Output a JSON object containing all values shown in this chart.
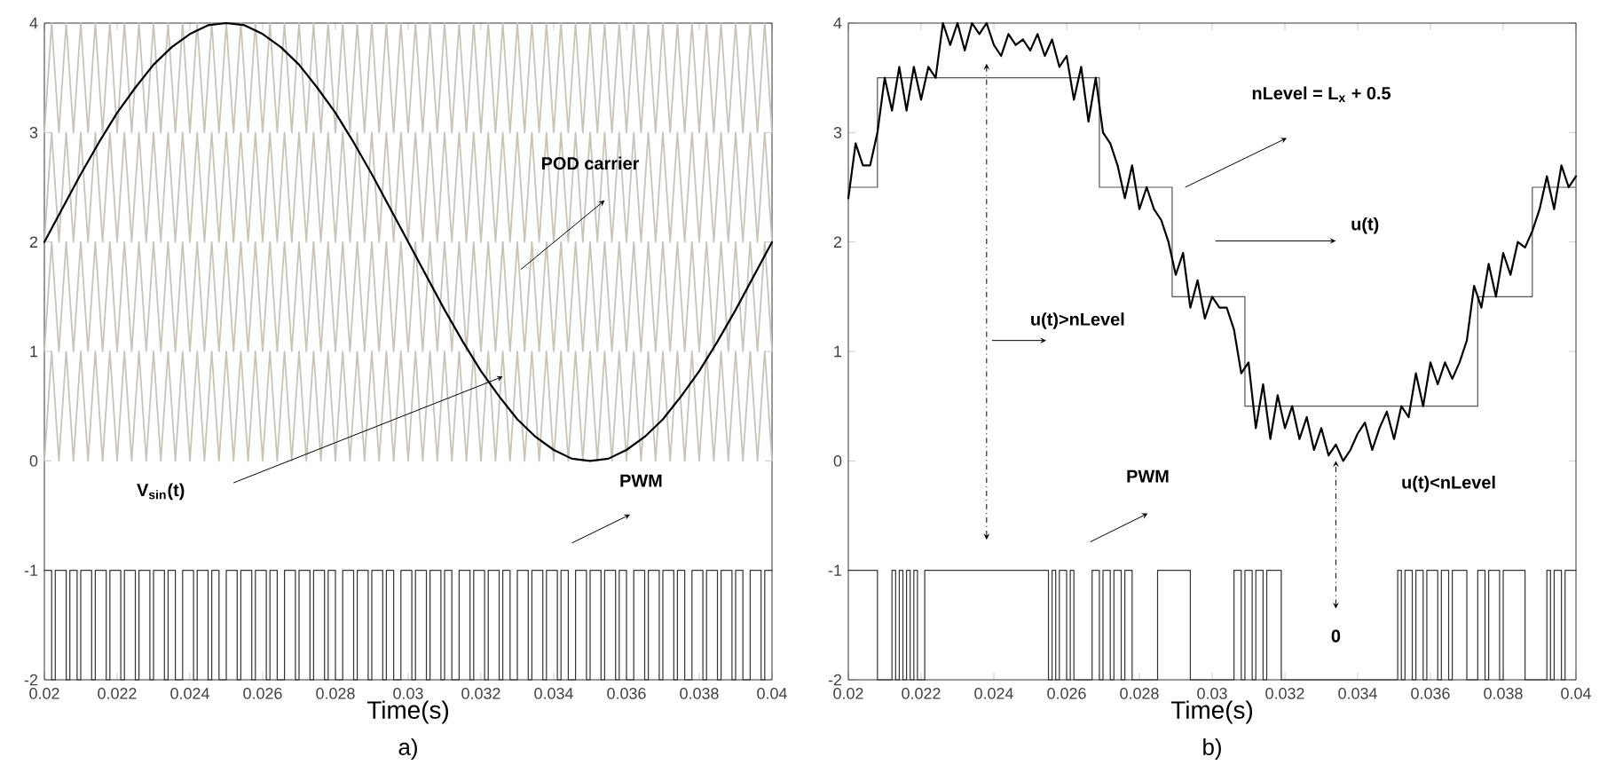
{
  "chart_data": [
    {
      "type": "line",
      "xlabel": "Time(s)",
      "xlim": [
        0.02,
        0.04
      ],
      "ylim": [
        -2,
        4
      ],
      "xticks": [
        0.02,
        0.022,
        0.024,
        0.026,
        0.028,
        0.03,
        0.032,
        0.034,
        0.036,
        0.038,
        0.04
      ],
      "yticks": [
        -2,
        -1,
        0,
        1,
        2,
        3,
        4
      ],
      "x": [
        0.02,
        0.0202,
        0.0204,
        0.0206,
        0.0208,
        0.021,
        0.0212,
        0.0214,
        0.0216,
        0.0218,
        0.022,
        0.0222,
        0.0224,
        0.0226,
        0.0228,
        0.023,
        0.0232,
        0.0234,
        0.0236,
        0.0238,
        0.024,
        0.0242,
        0.0244,
        0.0246,
        0.0248,
        0.025,
        0.0252,
        0.0254,
        0.0256,
        0.0258,
        0.026,
        0.0262,
        0.0264,
        0.0266,
        0.0268,
        0.027,
        0.0272,
        0.0274,
        0.0276,
        0.0278,
        0.028,
        0.0282,
        0.0284,
        0.0286,
        0.0288,
        0.029,
        0.0292,
        0.0294,
        0.0296,
        0.0298,
        0.03,
        0.0302,
        0.0304,
        0.0306,
        0.0308,
        0.031,
        0.0312,
        0.0314,
        0.0316,
        0.0318,
        0.032,
        0.0322,
        0.0324,
        0.0326,
        0.0328,
        0.033,
        0.0332,
        0.0334,
        0.0336,
        0.0338,
        0.034,
        0.0342,
        0.0344,
        0.0346,
        0.0348,
        0.035,
        0.0352,
        0.0354,
        0.0356,
        0.0358,
        0.036,
        0.0362,
        0.0364,
        0.0366,
        0.0368,
        0.037,
        0.0372,
        0.0374,
        0.0376,
        0.0378,
        0.038,
        0.0382,
        0.0384,
        0.0386,
        0.0388,
        0.039,
        0.0392,
        0.0394,
        0.0396,
        0.0398,
        0.04
      ],
      "series": [
        {
          "color": "#c8c3bd",
          "values": [
            0,
            1,
            0,
            1,
            0,
            1,
            0,
            1,
            0,
            1,
            0,
            1,
            0,
            1,
            0,
            1,
            0,
            1,
            0,
            1,
            0,
            1,
            0,
            1,
            0,
            1,
            0,
            1,
            0,
            1,
            0,
            1,
            0,
            1,
            0,
            1,
            0,
            1,
            0,
            1,
            0,
            1,
            0,
            1,
            0,
            1,
            0,
            1,
            0,
            1,
            0,
            1,
            0,
            1,
            0,
            1,
            0,
            1,
            0,
            1,
            0,
            1,
            0,
            1,
            0,
            1,
            0,
            1,
            0,
            1,
            0,
            1,
            0,
            1,
            0,
            1,
            0,
            1,
            0,
            1,
            0,
            1,
            0,
            1,
            0,
            1,
            0,
            1,
            0,
            1,
            0,
            1,
            0,
            1,
            0,
            1,
            0,
            1,
            0,
            1,
            0
          ]
        },
        {
          "color": "#c8c3bd",
          "values": [
            1,
            2,
            1,
            2,
            1,
            2,
            1,
            2,
            1,
            2,
            1,
            2,
            1,
            2,
            1,
            2,
            1,
            2,
            1,
            2,
            1,
            2,
            1,
            2,
            1,
            2,
            1,
            2,
            1,
            2,
            1,
            2,
            1,
            2,
            1,
            2,
            1,
            2,
            1,
            2,
            1,
            2,
            1,
            2,
            1,
            2,
            1,
            2,
            1,
            2,
            1,
            2,
            1,
            2,
            1,
            2,
            1,
            2,
            1,
            2,
            1,
            2,
            1,
            2,
            1,
            2,
            1,
            2,
            1,
            2,
            1,
            2,
            1,
            2,
            1,
            2,
            1,
            2,
            1,
            2,
            1,
            2,
            1,
            2,
            1,
            2,
            1,
            2,
            1,
            2,
            1,
            2,
            1,
            2,
            1,
            2,
            1,
            2,
            1,
            2,
            1
          ]
        },
        {
          "color": "#c8c3bd",
          "values": [
            2,
            3,
            2,
            3,
            2,
            3,
            2,
            3,
            2,
            3,
            2,
            3,
            2,
            3,
            2,
            3,
            2,
            3,
            2,
            3,
            2,
            3,
            2,
            3,
            2,
            3,
            2,
            3,
            2,
            3,
            2,
            3,
            2,
            3,
            2,
            3,
            2,
            3,
            2,
            3,
            2,
            3,
            2,
            3,
            2,
            3,
            2,
            3,
            2,
            3,
            2,
            3,
            2,
            3,
            2,
            3,
            2,
            3,
            2,
            3,
            2,
            3,
            2,
            3,
            2,
            3,
            2,
            3,
            2,
            3,
            2,
            3,
            2,
            3,
            2,
            3,
            2,
            3,
            2,
            3,
            2,
            3,
            2,
            3,
            2,
            3,
            2,
            3,
            2,
            3,
            2,
            3,
            2,
            3,
            2,
            3,
            2,
            3,
            2,
            3,
            2
          ]
        },
        {
          "color": "#c8c3bd",
          "values": [
            3,
            4,
            3,
            4,
            3,
            4,
            3,
            4,
            3,
            4,
            3,
            4,
            3,
            4,
            3,
            4,
            3,
            4,
            3,
            4,
            3,
            4,
            3,
            4,
            3,
            4,
            3,
            4,
            3,
            4,
            3,
            4,
            3,
            4,
            3,
            4,
            3,
            4,
            3,
            4,
            3,
            4,
            3,
            4,
            3,
            4,
            3,
            4,
            3,
            4,
            3,
            4,
            3,
            4,
            3,
            4,
            3,
            4,
            3,
            4,
            3,
            4,
            3,
            4,
            3,
            4,
            3,
            4,
            3,
            4,
            3,
            4,
            3,
            4,
            3,
            4,
            3,
            4,
            3,
            4,
            3,
            4,
            3,
            4,
            3,
            4,
            3,
            4,
            3,
            4,
            3,
            4,
            3,
            4,
            3,
            4,
            3,
            4,
            3,
            4,
            3
          ]
        },
        {
          "color": "#000000",
          "x": [
            0.02,
            0.0205,
            0.021,
            0.0215,
            0.022,
            0.0225,
            0.023,
            0.0235,
            0.024,
            0.0245,
            0.025,
            0.0255,
            0.026,
            0.0265,
            0.027,
            0.0275,
            0.028,
            0.0285,
            0.029,
            0.0295,
            0.03,
            0.0305,
            0.031,
            0.0315,
            0.032,
            0.0325,
            0.033,
            0.0335,
            0.034,
            0.0345,
            0.035,
            0.0355,
            0.036,
            0.0365,
            0.037,
            0.0375,
            0.038,
            0.0385,
            0.039,
            0.0395,
            0.04
          ],
          "values": [
            2,
            2.31,
            2.62,
            2.91,
            3.18,
            3.41,
            3.62,
            3.78,
            3.9,
            3.98,
            4,
            3.98,
            3.9,
            3.78,
            3.62,
            3.41,
            3.18,
            2.91,
            2.62,
            2.31,
            2,
            1.69,
            1.38,
            1.09,
            0.82,
            0.59,
            0.38,
            0.22,
            0.1,
            0.02,
            0,
            0.02,
            0.1,
            0.22,
            0.38,
            0.59,
            0.82,
            1.09,
            1.38,
            1.69,
            2
          ]
        },
        {
          "type": "step",
          "color": "#333333",
          "x": [
            0.02,
            0.0202,
            0.0203,
            0.0206,
            0.0207,
            0.0209,
            0.021,
            0.0213,
            0.0214,
            0.0217,
            0.0218,
            0.0221,
            0.0222,
            0.0225,
            0.0226,
            0.0229,
            0.023,
            0.0233,
            0.0234,
            0.0236,
            0.0238,
            0.0241,
            0.0242,
            0.0245,
            0.0246,
            0.0248,
            0.025,
            0.0253,
            0.0254,
            0.0257,
            0.0258,
            0.0261,
            0.0262,
            0.0264,
            0.0266,
            0.0269,
            0.027,
            0.0273,
            0.0274,
            0.0277,
            0.0278,
            0.028,
            0.0282,
            0.0285,
            0.0286,
            0.0289,
            0.029,
            0.0293,
            0.0294,
            0.0296,
            0.0298,
            0.0301,
            0.0302,
            0.0305,
            0.0306,
            0.0309,
            0.031,
            0.0312,
            0.0314,
            0.0317,
            0.0318,
            0.0321,
            0.0322,
            0.0325,
            0.0326,
            0.0328,
            0.033,
            0.0333,
            0.0334,
            0.0337,
            0.0338,
            0.0341,
            0.0342,
            0.0344,
            0.0346,
            0.0349,
            0.035,
            0.0353,
            0.0354,
            0.0357,
            0.0358,
            0.036,
            0.0362,
            0.0365,
            0.0366,
            0.0369,
            0.037,
            0.0373,
            0.0374,
            0.0376,
            0.0378,
            0.0381,
            0.0382,
            0.0385,
            0.0386,
            0.0389,
            0.039,
            0.0392,
            0.0394,
            0.0397,
            0.0398,
            0.04
          ],
          "values": [
            -1,
            -2,
            -1,
            -2,
            -1,
            -2,
            -1,
            -2,
            -1,
            -2,
            -1,
            -2,
            -1,
            -2,
            -1,
            -2,
            -1,
            -2,
            -1,
            -2,
            -1,
            -2,
            -1,
            -2,
            -1,
            -2,
            -1,
            -2,
            -1,
            -2,
            -1,
            -2,
            -1,
            -2,
            -1,
            -2,
            -1,
            -2,
            -1,
            -2,
            -1,
            -2,
            -1,
            -2,
            -1,
            -2,
            -1,
            -2,
            -1,
            -2,
            -1,
            -2,
            -1,
            -2,
            -1,
            -2,
            -1,
            -2,
            -1,
            -2,
            -1,
            -2,
            -1,
            -2,
            -1,
            -2,
            -1,
            -2,
            -1,
            -2,
            -1,
            -2,
            -1,
            -2,
            -1,
            -2,
            -1,
            -2,
            -1,
            -2,
            -1,
            -2,
            -1,
            -2,
            -1,
            -2,
            -1,
            -2,
            -1,
            -2,
            -1,
            -2,
            -1,
            -2,
            -1,
            -2,
            -1,
            -2,
            -1,
            -2,
            -1,
            -1
          ]
        }
      ],
      "annotations": [
        "POD carrier",
        "V$_{sin}$(t)",
        "PWM",
        "a)"
      ]
    },
    {
      "type": "line",
      "xlabel": "Time(s)",
      "xlim": [
        0.02,
        0.04
      ],
      "ylim": [
        -2,
        4
      ],
      "xticks": [
        0.02,
        0.022,
        0.024,
        0.026,
        0.028,
        0.03,
        0.032,
        0.034,
        0.036,
        0.038,
        0.04
      ],
      "yticks": [
        -2,
        -1,
        0,
        1,
        2,
        3,
        4
      ],
      "x": [
        0.02,
        0.0202,
        0.0204,
        0.0206,
        0.0208,
        0.021,
        0.0212,
        0.0214,
        0.0216,
        0.0218,
        0.022,
        0.0222,
        0.0224,
        0.0226,
        0.0228,
        0.023,
        0.0232,
        0.0234,
        0.0236,
        0.0238,
        0.024,
        0.0242,
        0.0244,
        0.0246,
        0.0248,
        0.025,
        0.0252,
        0.0254,
        0.0256,
        0.0258,
        0.026,
        0.0262,
        0.0264,
        0.0266,
        0.0268,
        0.027,
        0.0272,
        0.0274,
        0.0276,
        0.0278,
        0.028,
        0.0282,
        0.0284,
        0.0286,
        0.0288,
        0.029,
        0.0292,
        0.0294,
        0.0296,
        0.0298,
        0.03,
        0.0302,
        0.0304,
        0.0306,
        0.0308,
        0.031,
        0.0312,
        0.0314,
        0.0316,
        0.0318,
        0.032,
        0.0322,
        0.0324,
        0.0326,
        0.0328,
        0.033,
        0.0332,
        0.0334,
        0.0336,
        0.0338,
        0.034,
        0.0342,
        0.0344,
        0.0346,
        0.0348,
        0.035,
        0.0352,
        0.0354,
        0.0356,
        0.0358,
        0.036,
        0.0362,
        0.0364,
        0.0366,
        0.0368,
        0.037,
        0.0372,
        0.0374,
        0.0376,
        0.0378,
        0.038,
        0.0382,
        0.0384,
        0.0386,
        0.0388,
        0.039,
        0.0392,
        0.0394,
        0.0396,
        0.0398,
        0.04
      ],
      "series": [
        {
          "type": "step",
          "color": "#555555",
          "x": [
            0.02,
            0.0208,
            0.0269,
            0.0289,
            0.0309,
            0.0373,
            0.0388,
            0.04
          ],
          "values": [
            2.5,
            3.5,
            2.5,
            1.5,
            0.5,
            1.5,
            2.5,
            2.5
          ]
        },
        {
          "color": "#000000",
          "values": [
            2.4,
            2.9,
            2.7,
            2.7,
            3.0,
            3.5,
            3.2,
            3.6,
            3.2,
            3.6,
            3.3,
            3.6,
            3.5,
            4.0,
            3.8,
            4.0,
            3.75,
            4.0,
            3.9,
            4.0,
            3.8,
            3.7,
            3.9,
            3.8,
            3.85,
            3.75,
            3.9,
            3.7,
            3.85,
            3.6,
            3.7,
            3.3,
            3.6,
            3.1,
            3.5,
            3.0,
            2.9,
            2.7,
            2.4,
            2.7,
            2.3,
            2.5,
            2.3,
            2.2,
            2.0,
            1.7,
            1.9,
            1.4,
            1.65,
            1.3,
            1.5,
            1.4,
            1.4,
            1.2,
            0.8,
            0.9,
            0.3,
            0.7,
            0.2,
            0.6,
            0.3,
            0.5,
            0.2,
            0.4,
            0.1,
            0.3,
            0.05,
            0.15,
            0,
            0.1,
            0.25,
            0.35,
            0.1,
            0.3,
            0.45,
            0.2,
            0.5,
            0.4,
            0.8,
            0.5,
            0.9,
            0.7,
            0.9,
            0.75,
            0.9,
            1.1,
            1.6,
            1.4,
            1.8,
            1.5,
            1.9,
            1.7,
            2.0,
            1.95,
            2.1,
            2.3,
            2.6,
            2.3,
            2.7,
            2.5,
            2.6
          ]
        },
        {
          "type": "step",
          "color": "#333333",
          "x": [
            0.02,
            0.0208,
            0.0212,
            0.0213,
            0.0214,
            0.0215,
            0.0216,
            0.0217,
            0.0218,
            0.0219,
            0.0221,
            0.0255,
            0.0256,
            0.0257,
            0.0258,
            0.026,
            0.0261,
            0.0262,
            0.0267,
            0.0269,
            0.027,
            0.0272,
            0.0273,
            0.0275,
            0.0276,
            0.0278,
            0.0285,
            0.0294,
            0.0306,
            0.0308,
            0.0309,
            0.0311,
            0.0312,
            0.0314,
            0.0315,
            0.0319,
            0.0351,
            0.0352,
            0.0353,
            0.0355,
            0.0356,
            0.0358,
            0.0359,
            0.0362,
            0.0363,
            0.0365,
            0.0366,
            0.037,
            0.0373,
            0.0375,
            0.0376,
            0.0379,
            0.038,
            0.0386,
            0.0392,
            0.0393,
            0.0394,
            0.0396,
            0.0397,
            0.04
          ],
          "values": [
            -1,
            -2,
            -1,
            -2,
            -1,
            -2,
            -1,
            -2,
            -1,
            -2,
            -1,
            -2,
            -1,
            -2,
            -1,
            -2,
            -1,
            -2,
            -1,
            -2,
            -1,
            -2,
            -1,
            -2,
            -1,
            -2,
            -1,
            -2,
            -1,
            -2,
            -1,
            -2,
            -1,
            -2,
            -1,
            -2,
            -1,
            -2,
            -1,
            -2,
            -1,
            -2,
            -1,
            -2,
            -1,
            -2,
            -1,
            -2,
            -1,
            -2,
            -1,
            -2,
            -1,
            -2,
            -1,
            -2,
            -1,
            -2,
            -1,
            -1
          ]
        }
      ],
      "annotations": [
        "nLevel = L$_{x}$ + 0.5",
        "u(t)",
        "u(t)>nLevel",
        "PWM",
        "u(t)<nLevel",
        "0",
        "b)"
      ]
    }
  ]
}
